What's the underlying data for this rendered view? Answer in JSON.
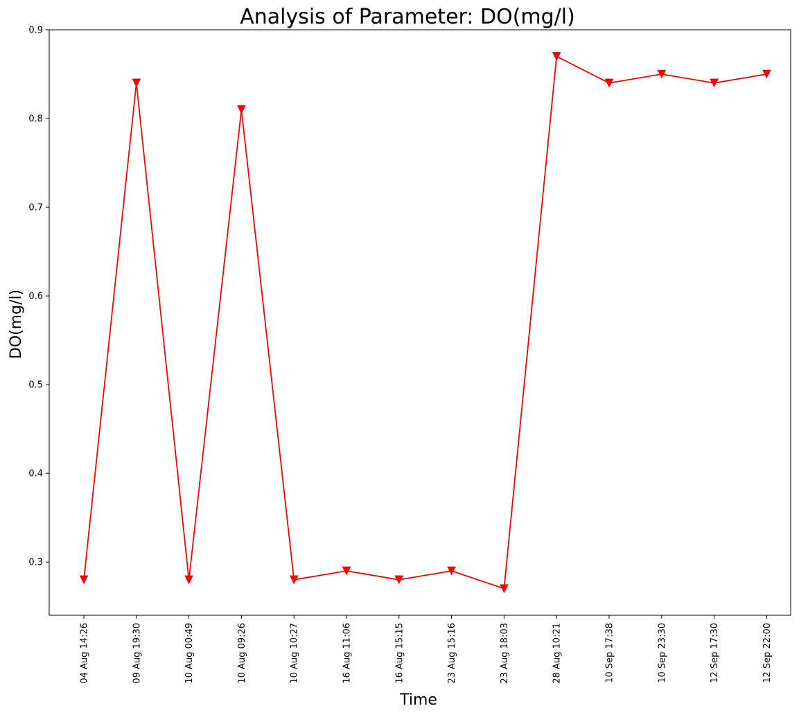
{
  "chart_data": {
    "type": "line",
    "title": "Analysis of Parameter: DO(mg/l)",
    "xlabel": "Time",
    "ylabel": "DO(mg/l)",
    "ylim": [
      0.24,
      0.9
    ],
    "yticks": [
      "0.3",
      "0.4",
      "0.5",
      "0.6",
      "0.7",
      "0.8",
      "0.9"
    ],
    "grid": false,
    "categories": [
      "04 Aug 14:26",
      "09 Aug 19:30",
      "10 Aug 00:49",
      "10 Aug 09:26",
      "10 Aug 10:27",
      "16 Aug 11:06",
      "16 Aug 15:15",
      "23 Aug 15:16",
      "23 Aug 18:03",
      "28 Aug 10:21",
      "10 Sep 17:38",
      "10 Sep 23:30",
      "12 Sep 17:30",
      "12 Sep 22:00"
    ],
    "series": [
      {
        "color": "#ff0000",
        "marker": "triangle-down",
        "values": [
          0.28,
          0.84,
          0.28,
          0.81,
          0.28,
          0.29,
          0.28,
          0.29,
          0.27,
          0.87,
          0.84,
          0.85,
          0.84,
          0.85
        ]
      }
    ]
  }
}
